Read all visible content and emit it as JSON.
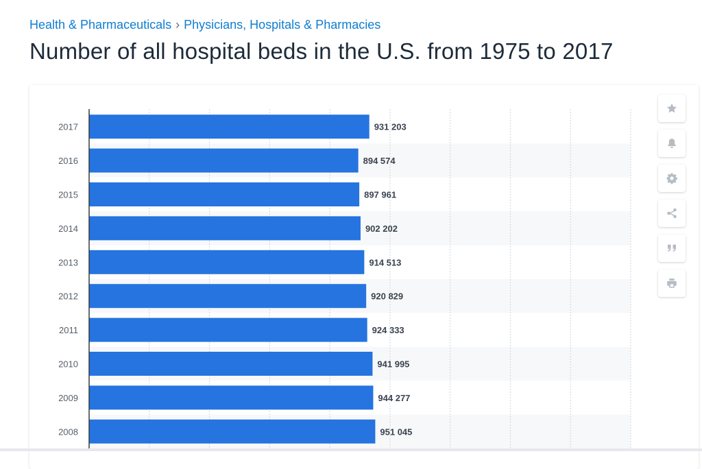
{
  "breadcrumb": {
    "items": [
      {
        "label": "Health & Pharmaceuticals"
      },
      {
        "label": "Physicians, Hospitals & Pharmacies"
      }
    ],
    "separator": "›"
  },
  "page": {
    "title": "Number of all hospital beds in the U.S. from 1975 to 2017"
  },
  "toolbar": {
    "buttons": [
      {
        "name": "favorite",
        "icon": "star-icon"
      },
      {
        "name": "notification",
        "icon": "bell-icon"
      },
      {
        "name": "settings",
        "icon": "gear-icon"
      },
      {
        "name": "share",
        "icon": "share-icon"
      },
      {
        "name": "cite",
        "icon": "quote-icon"
      },
      {
        "name": "print",
        "icon": "print-icon"
      }
    ]
  },
  "chart_data": {
    "type": "bar",
    "orientation": "horizontal",
    "categories": [
      "2017",
      "2016",
      "2015",
      "2014",
      "2013",
      "2012",
      "2011",
      "2010",
      "2009",
      "2008"
    ],
    "values": [
      931203,
      894574,
      897961,
      902202,
      914513,
      920829,
      924333,
      941995,
      944277,
      951045
    ],
    "value_labels": [
      "931 203",
      "894 574",
      "897 961",
      "902 202",
      "914 513",
      "920 829",
      "924 333",
      "941 995",
      "944 277",
      "951 045"
    ],
    "xlim": [
      0,
      1800000
    ],
    "grid": true,
    "bar_color": "#2574e0",
    "stripe_color": "#f7f8f9",
    "grid_color": "#d0d5da"
  }
}
